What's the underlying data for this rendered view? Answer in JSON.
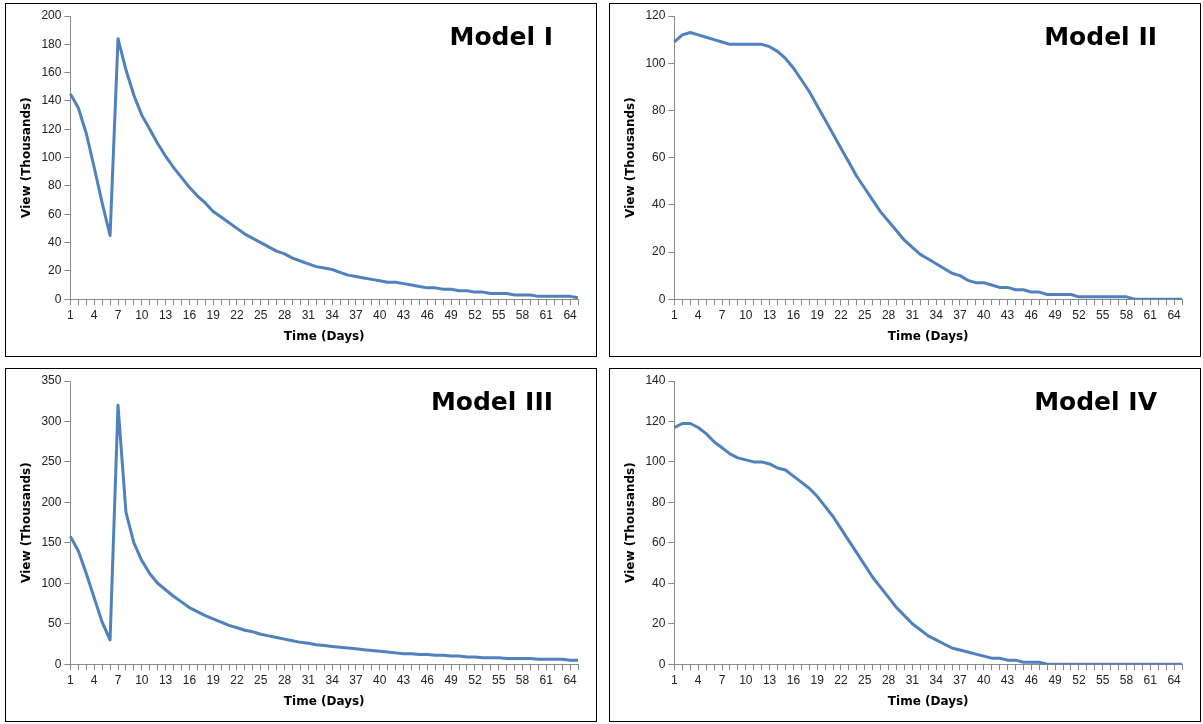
{
  "chart_data": [
    {
      "type": "line",
      "title": "Model I",
      "xlabel": "Time (Days)",
      "ylabel": "View (Thousands)",
      "grid": false,
      "categories": [
        "1",
        null,
        null,
        "4",
        null,
        null,
        "7",
        null,
        null,
        "10",
        null,
        null,
        "13",
        null,
        null,
        "16",
        null,
        null,
        "19",
        null,
        null,
        "22",
        null,
        null,
        "25",
        null,
        null,
        "28",
        null,
        null,
        "31",
        null,
        null,
        "34",
        null,
        null,
        "37",
        null,
        null,
        "40",
        null,
        null,
        "43",
        null,
        null,
        "46",
        null,
        null,
        "49",
        null,
        null,
        "52",
        null,
        null,
        "55",
        null,
        null,
        "58",
        null,
        null,
        "61",
        null,
        null,
        "64",
        null
      ],
      "ylim": [
        0,
        200
      ],
      "yticks": [
        0,
        20,
        40,
        60,
        80,
        100,
        120,
        140,
        160,
        180,
        200
      ],
      "series": [
        {
          "color": "#4f81bd",
          "values": [
            145,
            135,
            117,
            93,
            68,
            45,
            184,
            162,
            144,
            130,
            120,
            110,
            101,
            93,
            86,
            79,
            73,
            68,
            62,
            58,
            54,
            50,
            46,
            43,
            40,
            37,
            34,
            32,
            29,
            27,
            25,
            23,
            22,
            21,
            19,
            17,
            16,
            15,
            14,
            13,
            12,
            12,
            11,
            10,
            9,
            8,
            8,
            7,
            7,
            6,
            6,
            5,
            5,
            4,
            4,
            4,
            3,
            3,
            3,
            2,
            2,
            2,
            2,
            2,
            1
          ]
        }
      ]
    },
    {
      "type": "line",
      "title": "Model II",
      "xlabel": "Time (Days)",
      "ylabel": "View (Thousands)",
      "grid": false,
      "categories": [
        "1",
        null,
        null,
        "4",
        null,
        null,
        "7",
        null,
        null,
        "10",
        null,
        null,
        "13",
        null,
        null,
        "16",
        null,
        null,
        "19",
        null,
        null,
        "22",
        null,
        null,
        "25",
        null,
        null,
        "28",
        null,
        null,
        "31",
        null,
        null,
        "34",
        null,
        null,
        "37",
        null,
        null,
        "40",
        null,
        null,
        "43",
        null,
        null,
        "46",
        null,
        null,
        "49",
        null,
        null,
        "52",
        null,
        null,
        "55",
        null,
        null,
        "58",
        null,
        null,
        "61",
        null,
        null,
        "64",
        null
      ],
      "ylim": [
        0,
        120
      ],
      "yticks": [
        0,
        20,
        40,
        60,
        80,
        100,
        120
      ],
      "series": [
        {
          "color": "#4f81bd",
          "values": [
            109,
            112,
            113,
            112,
            111,
            110,
            109,
            108,
            108,
            108,
            108,
            108,
            107,
            105,
            102,
            98,
            93,
            88,
            82,
            76,
            70,
            64,
            58,
            52,
            47,
            42,
            37,
            33,
            29,
            25,
            22,
            19,
            17,
            15,
            13,
            11,
            10,
            8,
            7,
            7,
            6,
            5,
            5,
            4,
            4,
            3,
            3,
            2,
            2,
            2,
            2,
            1,
            1,
            1,
            1,
            1,
            1,
            1,
            0,
            0,
            0,
            0,
            0,
            0,
            0
          ]
        }
      ]
    },
    {
      "type": "line",
      "title": "Model III",
      "xlabel": "Time (Days)",
      "ylabel": "View (Thousands)",
      "grid": false,
      "categories": [
        "1",
        null,
        null,
        "4",
        null,
        null,
        "7",
        null,
        null,
        "10",
        null,
        null,
        "13",
        null,
        null,
        "16",
        null,
        null,
        "19",
        null,
        null,
        "22",
        null,
        null,
        "25",
        null,
        null,
        "28",
        null,
        null,
        "31",
        null,
        null,
        "34",
        null,
        null,
        "37",
        null,
        null,
        "40",
        null,
        null,
        "43",
        null,
        null,
        "46",
        null,
        null,
        "49",
        null,
        null,
        "52",
        null,
        null,
        "55",
        null,
        null,
        "58",
        null,
        null,
        "61",
        null,
        null,
        "64",
        null
      ],
      "ylim": [
        0,
        350
      ],
      "yticks": [
        0,
        50,
        100,
        150,
        200,
        250,
        300,
        350
      ],
      "series": [
        {
          "color": "#4f81bd",
          "values": [
            158,
            140,
            112,
            82,
            52,
            30,
            320,
            188,
            150,
            128,
            112,
            100,
            92,
            84,
            77,
            70,
            65,
            60,
            56,
            52,
            48,
            45,
            42,
            40,
            37,
            35,
            33,
            31,
            29,
            27,
            26,
            24,
            23,
            22,
            21,
            20,
            19,
            18,
            17,
            16,
            15,
            14,
            13,
            13,
            12,
            12,
            11,
            11,
            10,
            10,
            9,
            9,
            8,
            8,
            8,
            7,
            7,
            7,
            7,
            6,
            6,
            6,
            6,
            5,
            5
          ]
        }
      ]
    },
    {
      "type": "line",
      "title": "Model IV",
      "xlabel": "Time (Days)",
      "ylabel": "View (Thousands)",
      "grid": false,
      "categories": [
        "1",
        null,
        null,
        "4",
        null,
        null,
        "7",
        null,
        null,
        "10",
        null,
        null,
        "13",
        null,
        null,
        "16",
        null,
        null,
        "19",
        null,
        null,
        "22",
        null,
        null,
        "25",
        null,
        null,
        "28",
        null,
        null,
        "31",
        null,
        null,
        "34",
        null,
        null,
        "37",
        null,
        null,
        "40",
        null,
        null,
        "43",
        null,
        null,
        "46",
        null,
        null,
        "49",
        null,
        null,
        "52",
        null,
        null,
        "55",
        null,
        null,
        "58",
        null,
        null,
        "61",
        null,
        null,
        "64",
        null
      ],
      "ylim": [
        0,
        140
      ],
      "yticks": [
        0,
        20,
        40,
        60,
        80,
        100,
        120,
        140
      ],
      "series": [
        {
          "color": "#4f81bd",
          "values": [
            117,
            119,
            119,
            117,
            114,
            110,
            107,
            104,
            102,
            101,
            100,
            100,
            99,
            97,
            96,
            93,
            90,
            87,
            83,
            78,
            73,
            67,
            61,
            55,
            49,
            43,
            38,
            33,
            28,
            24,
            20,
            17,
            14,
            12,
            10,
            8,
            7,
            6,
            5,
            4,
            3,
            3,
            2,
            2,
            1,
            1,
            1,
            0,
            0,
            0,
            0,
            0,
            0,
            0,
            0,
            0,
            0,
            0,
            0,
            0,
            0,
            0,
            0,
            0,
            0
          ]
        }
      ]
    }
  ]
}
